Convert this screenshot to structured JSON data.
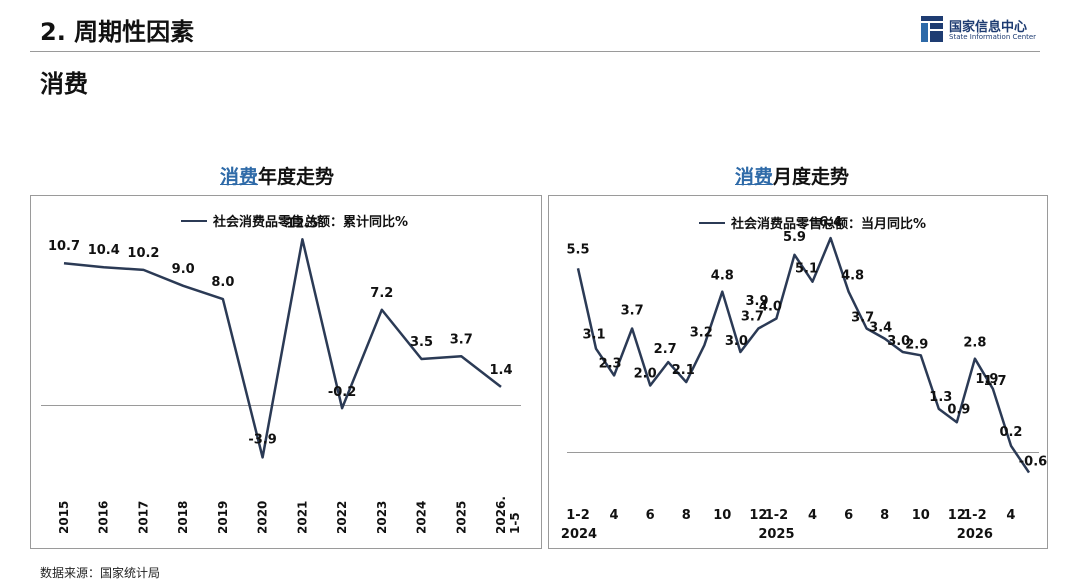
{
  "header": {
    "section_title": "2. 周期性因素",
    "topic": "消费"
  },
  "logo": {
    "cn": "国家信息中心",
    "en": "State Information Center"
  },
  "colors": {
    "line": "#2b3a55",
    "highlight": "#2e6aa8",
    "zero_line": "#9a9a9a",
    "border": "#9a9a9a"
  },
  "source": "数据来源：国家统计局",
  "chart_data": [
    {
      "type": "line",
      "title_highlight": "消费",
      "title_rest": "年度走势",
      "legend": "社会消费品零售总额：累计同比%",
      "legend_position": "top",
      "categories": [
        "2015",
        "2016",
        "2017",
        "2018",
        "2019",
        "2020",
        "2021",
        "2022",
        "2023",
        "2024",
        "2025",
        "2026.1-5"
      ],
      "category_labels": [
        "2015",
        "2016",
        "2017",
        "2018",
        "2019",
        "2020",
        "2021",
        "2022",
        "2023",
        "2024",
        "2025",
        "2026.\n1-5"
      ],
      "series": [
        {
          "name": "社会消费品零售总额：累计同比%",
          "values": [
            10.7,
            10.4,
            10.2,
            9.0,
            8.0,
            -3.9,
            12.5,
            -0.2,
            7.2,
            3.5,
            3.7,
            1.4
          ],
          "labels": [
            "10.7",
            "10.4",
            "10.2",
            "9.0",
            "8.0",
            "-3.9",
            "12.5",
            "-0.2",
            "7.2",
            "3.5",
            "3.7",
            "1.4"
          ]
        }
      ],
      "ylim": [
        -5.0,
        13.5
      ],
      "grid": false
    },
    {
      "type": "line",
      "title_highlight": "消费",
      "title_rest": "月度走势",
      "legend": "社会消费品零售总额：当月同比%",
      "legend_position": "top",
      "x_ticks": [
        "1-2",
        "4",
        "6",
        "8",
        "10",
        "12",
        "1-2",
        "4",
        "6",
        "8",
        "10",
        "12",
        "1-2",
        "4"
      ],
      "year_labels": [
        "2024",
        "2025",
        "2026"
      ],
      "x": [
        "2024-02",
        "2024-03",
        "2024-04",
        "2024-05",
        "2024-06",
        "2024-07",
        "2024-08",
        "2024-09",
        "2024-10",
        "2024-11",
        "2024-12",
        "2025-02",
        "2025-03",
        "2025-04",
        "2025-05",
        "2025-06",
        "2025-07",
        "2025-08",
        "2025-09",
        "2025-10",
        "2025-11",
        "2025-12",
        "2026-02",
        "2026-03",
        "2026-04",
        "2026-05"
      ],
      "series": [
        {
          "name": "社会消费品零售总额：当月同比%",
          "values": [
            5.5,
            3.1,
            2.3,
            3.7,
            2.0,
            2.7,
            2.1,
            3.2,
            4.8,
            3.0,
            3.7,
            4.0,
            5.9,
            5.1,
            6.4,
            4.8,
            3.7,
            3.4,
            3.0,
            2.9,
            1.3,
            0.9,
            2.8,
            1.9,
            0.2,
            -0.6
          ],
          "labels": [
            "5.5",
            "3.1",
            "2.3",
            "3.7",
            "2.0",
            "2.7",
            "2.1",
            "3.2",
            "4.8",
            "3.0",
            "3.7",
            "4.0",
            "5.9",
            "5.1",
            "6.4",
            "4.8",
            "3.7",
            "3.4",
            "3.0",
            "2.9",
            "1.3",
            "0.9",
            "2.8",
            "1.9",
            "0.2",
            "-0.6"
          ]
        }
      ],
      "extra_labels": [
        "3.9",
        "1.7"
      ],
      "ylim": [
        -1.0,
        7.0
      ],
      "grid": false
    }
  ]
}
